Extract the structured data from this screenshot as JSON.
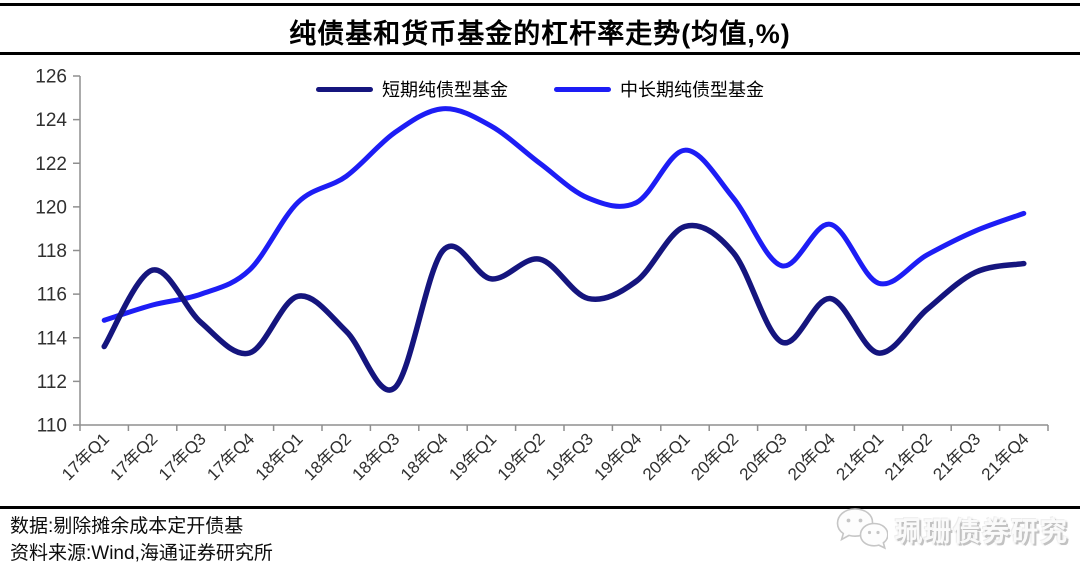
{
  "footer": {
    "data_note": "数据:剔除摊余成本定开债基",
    "source_note": "资料来源:Wind,海通证券研究所"
  },
  "watermark": {
    "icon": "wechat-icon",
    "label": "珮珊债券研究"
  },
  "chart_data": {
    "type": "line",
    "title": "纯债基和货币基金的杠杆率走势(均值,%)",
    "categories": [
      "17年Q1",
      "17年Q2",
      "17年Q3",
      "17年Q4",
      "18年Q1",
      "18年Q2",
      "18年Q3",
      "18年Q4",
      "19年Q1",
      "19年Q2",
      "19年Q3",
      "19年Q4",
      "20年Q1",
      "20年Q2",
      "20年Q3",
      "20年Q4",
      "21年Q1",
      "21年Q2",
      "21年Q3",
      "21年Q4"
    ],
    "series": [
      {
        "name": "短期纯债型基金",
        "color": "#15157e",
        "values": [
          113.6,
          117.1,
          114.7,
          113.3,
          115.9,
          114.3,
          111.7,
          118.0,
          116.7,
          117.6,
          115.8,
          116.6,
          119.1,
          117.9,
          113.8,
          115.8,
          113.3,
          115.3,
          117.0,
          117.4
        ]
      },
      {
        "name": "中长期纯债型基金",
        "color": "#1d1df5",
        "values": [
          114.8,
          115.5,
          116.0,
          117.1,
          120.2,
          121.4,
          123.4,
          124.5,
          123.7,
          122.0,
          120.4,
          120.2,
          122.6,
          120.4,
          117.3,
          119.2,
          116.5,
          117.8,
          118.9,
          119.7
        ]
      }
    ],
    "ylim": [
      110,
      126
    ],
    "ytick_step": 2,
    "grid": false,
    "smooth": true,
    "legend_position": "top-center",
    "axis_color": "#8f8f8f",
    "tick_label_color": "#303030"
  }
}
